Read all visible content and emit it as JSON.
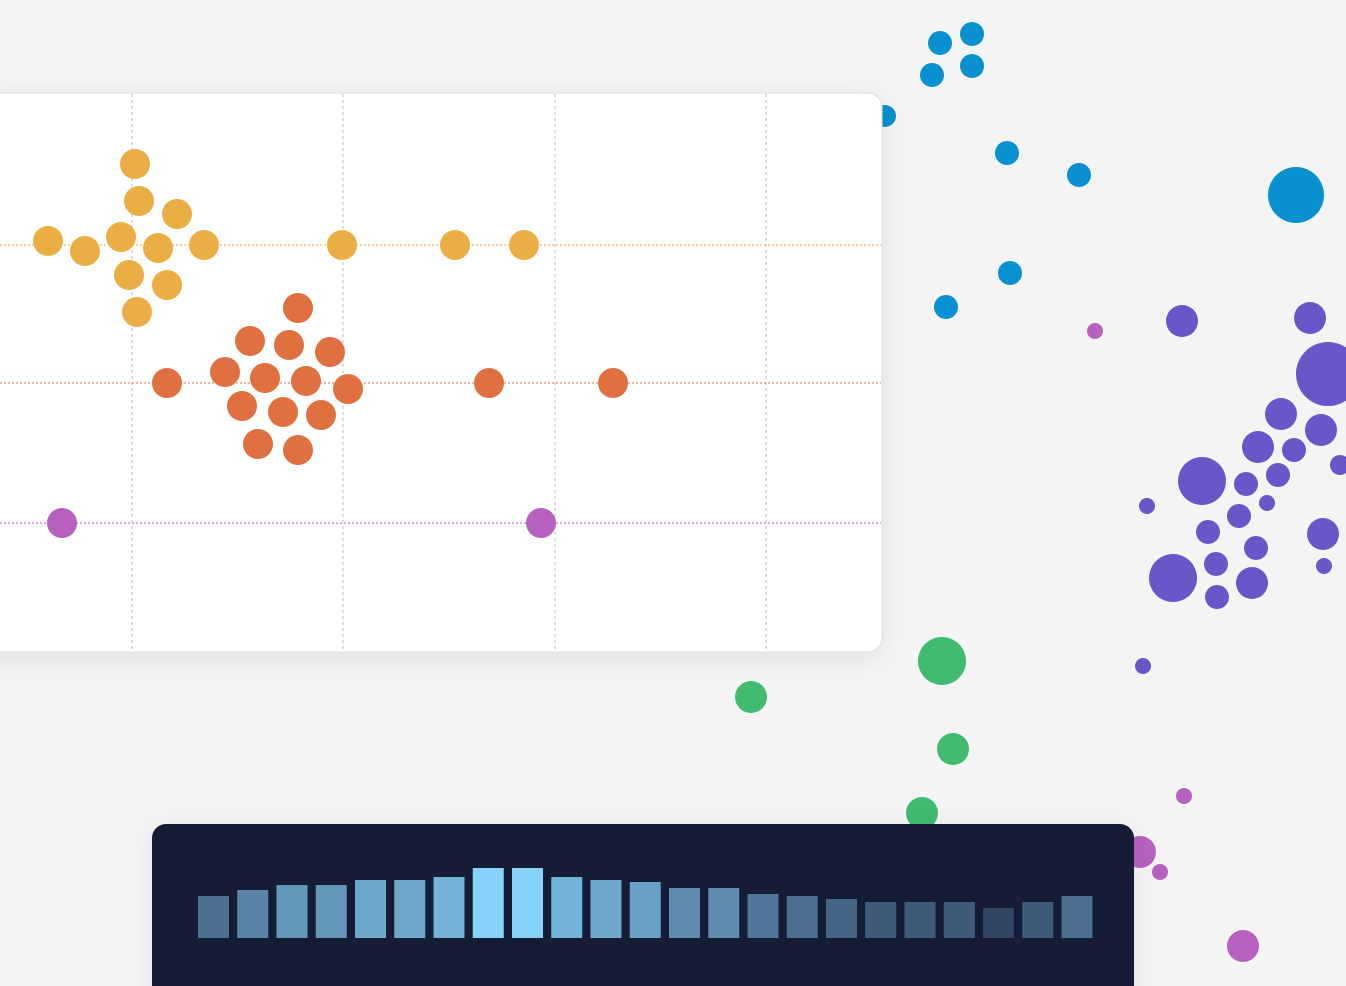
{
  "chart_data": {
    "type": "bar",
    "values": [
      42,
      48,
      53,
      53,
      58,
      58,
      61,
      70,
      70,
      61,
      58,
      56,
      50,
      50,
      44,
      42,
      39,
      36,
      36,
      36,
      30,
      36,
      42
    ]
  }
}
